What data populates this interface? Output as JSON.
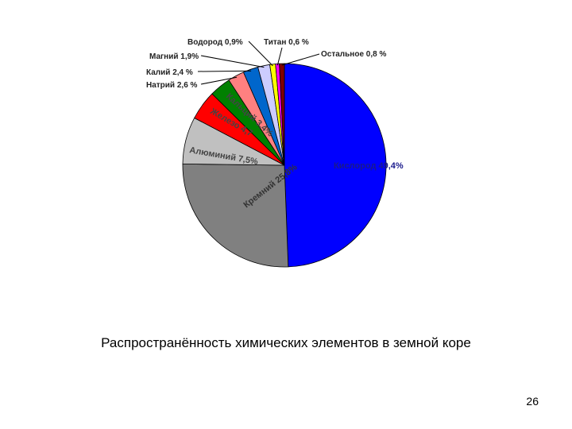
{
  "chart_data": {
    "type": "pie",
    "start_angle_deg": 0,
    "direction": "clockwise",
    "slices": [
      {
        "label": "Кислород 49,4%",
        "value": 49.4,
        "color": "#0000ff",
        "label_style": "inside",
        "text_color": "#1a1a8c"
      },
      {
        "label": "Кремний 25,8%",
        "value": 25.8,
        "color": "#808080",
        "label_style": "inside",
        "text_color": "#333333"
      },
      {
        "label": "Алюминий 7,5%",
        "value": 7.5,
        "color": "#c0c0c0",
        "label_style": "inside",
        "text_color": "#444444"
      },
      {
        "label": "Железо 4,7",
        "value": 4.7,
        "color": "#ff0000",
        "label_style": "inside",
        "text_color": "#444444"
      },
      {
        "label": "Кальций 3,4%",
        "value": 3.4,
        "color": "#008000",
        "label_style": "inside",
        "text_color": "#444444"
      },
      {
        "label": "Натрий 2,6 %",
        "value": 2.6,
        "color": "#ff8080",
        "label_style": "outside"
      },
      {
        "label": "Калий 2,4 %",
        "value": 2.4,
        "color": "#0066cc",
        "label_style": "outside"
      },
      {
        "label": "Магний 1,9%",
        "value": 1.9,
        "color": "#ccccff",
        "label_style": "outside"
      },
      {
        "label": "Водород 0,9%",
        "value": 0.9,
        "color": "#ffff00",
        "label_style": "outside"
      },
      {
        "label": "Титан 0,6 %",
        "value": 0.6,
        "color": "#ff00ff",
        "label_style": "outside"
      },
      {
        "label": "Остальное 0,8 %",
        "value": 0.8,
        "color": "#800000",
        "label_style": "outside"
      }
    ]
  },
  "caption": "Распространённость химических элементов в земной коре",
  "page_number": "26"
}
